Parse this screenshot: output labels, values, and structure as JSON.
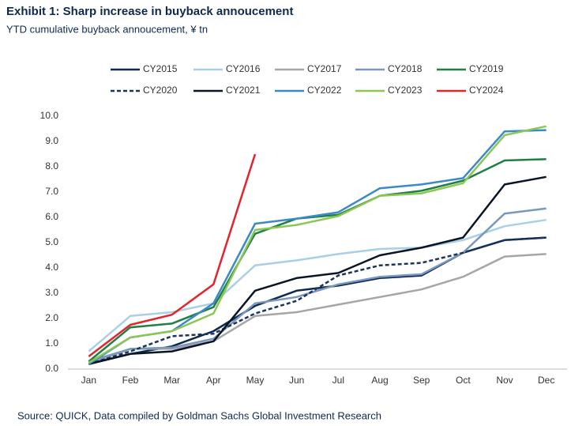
{
  "chart_data": {
    "type": "line",
    "title": "Exhibit 1: Sharp increase in buyback annoucement",
    "subtitle": "YTD cumulative buyback annoucement, ¥ tn",
    "source": "Source: QUICK, Data compiled by Goldman Sachs Global Investment Research",
    "categories": [
      "Jan",
      "Feb",
      "Mar",
      "Apr",
      "May",
      "Jun",
      "Jul",
      "Aug",
      "Sep",
      "Oct",
      "Nov",
      "Dec"
    ],
    "ylim": [
      0,
      10
    ],
    "yticks": [
      {
        "value": 0,
        "label": "0.0"
      },
      {
        "value": 1,
        "label": "1.0"
      },
      {
        "value": 2,
        "label": "2.0"
      },
      {
        "value": 3,
        "label": "3.0"
      },
      {
        "value": 4,
        "label": "4.0"
      },
      {
        "value": 5,
        "label": "5.0"
      },
      {
        "value": 6,
        "label": "6.0"
      },
      {
        "value": 7,
        "label": "7.0"
      },
      {
        "value": 8,
        "label": "8.0"
      },
      {
        "value": 9,
        "label": "9.0"
      },
      {
        "value": 10,
        "label": "10.0"
      }
    ],
    "grid": false,
    "series": [
      {
        "name": "CY2015",
        "color": "#0d2a4e",
        "style": "solid",
        "values": [
          0.2,
          0.6,
          0.9,
          1.5,
          2.5,
          3.1,
          3.3,
          3.6,
          3.7,
          4.6,
          5.1,
          5.2
        ]
      },
      {
        "name": "CY2016",
        "color": "#a9cfe8",
        "style": "solid",
        "values": [
          0.7,
          2.1,
          2.25,
          2.6,
          4.1,
          4.3,
          4.55,
          4.75,
          4.8,
          5.1,
          5.65,
          5.9
        ]
      },
      {
        "name": "CY2017",
        "color": "#a6a6a6",
        "style": "solid",
        "values": [
          0.2,
          0.8,
          0.8,
          1.1,
          2.1,
          2.25,
          2.55,
          2.85,
          3.15,
          3.65,
          4.45,
          4.55
        ]
      },
      {
        "name": "CY2018",
        "color": "#7a97c0",
        "style": "solid",
        "values": [
          0.3,
          0.8,
          0.85,
          1.2,
          2.6,
          2.85,
          3.35,
          3.65,
          3.75,
          4.6,
          6.15,
          6.35
        ]
      },
      {
        "name": "CY2019",
        "color": "#1f7f45",
        "style": "solid",
        "values": [
          0.3,
          1.65,
          1.8,
          2.45,
          5.35,
          5.95,
          6.1,
          6.85,
          7.05,
          7.45,
          8.25,
          8.3
        ]
      },
      {
        "name": "CY2020",
        "color": "#1b355e",
        "style": "dashed",
        "values": [
          0.2,
          0.7,
          1.3,
          1.4,
          2.2,
          2.7,
          3.7,
          4.1,
          4.2,
          4.6,
          5.1,
          5.2
        ]
      },
      {
        "name": "CY2021",
        "color": "#0a1526",
        "style": "solid",
        "values": [
          0.2,
          0.6,
          0.7,
          1.1,
          3.1,
          3.6,
          3.8,
          4.5,
          4.8,
          5.2,
          7.3,
          7.6
        ]
      },
      {
        "name": "CY2022",
        "color": "#3a8ac8",
        "style": "solid",
        "values": [
          0.2,
          1.25,
          1.5,
          2.6,
          5.75,
          5.95,
          6.2,
          7.15,
          7.3,
          7.55,
          9.4,
          9.45
        ]
      },
      {
        "name": "CY2023",
        "color": "#8cc653",
        "style": "solid",
        "values": [
          0.25,
          1.25,
          1.5,
          2.2,
          5.5,
          5.7,
          6.05,
          6.85,
          6.95,
          7.35,
          9.25,
          9.6
        ]
      },
      {
        "name": "CY2024",
        "color": "#e2242b",
        "style": "solid",
        "values": [
          0.5,
          1.75,
          2.15,
          3.35,
          8.5,
          null,
          null,
          null,
          null,
          null,
          null,
          null
        ]
      }
    ]
  }
}
